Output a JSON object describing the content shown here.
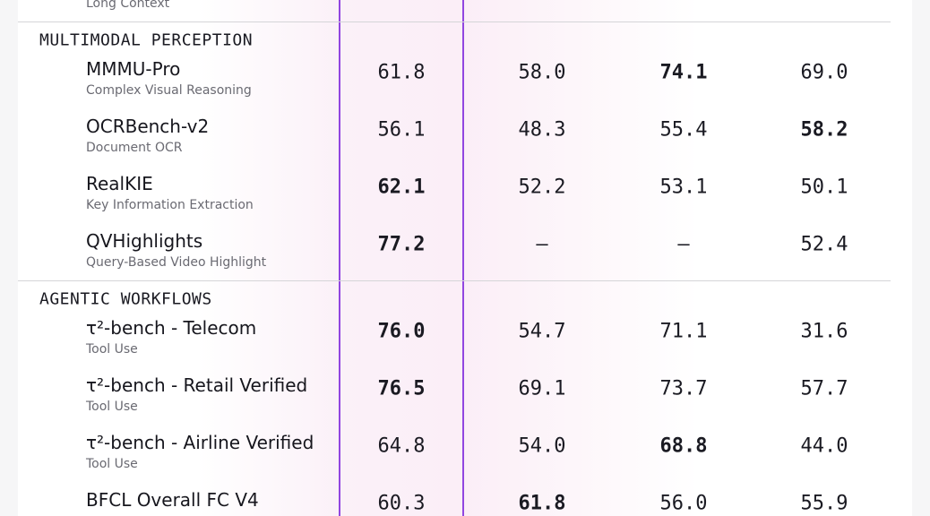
{
  "top_row": {
    "subtitle": "Long Context"
  },
  "sections": [
    {
      "title": "MULTIMODAL PERCEPTION",
      "rows": [
        {
          "name": "MMMU-Pro",
          "subtitle": "Complex Visual Reasoning",
          "values": [
            "61.8",
            "58.0",
            "74.1",
            "69.0"
          ],
          "bold": [
            2
          ]
        },
        {
          "name": "OCRBench-v2",
          "subtitle": "Document OCR",
          "values": [
            "56.1",
            "48.3",
            "55.4",
            "58.2"
          ],
          "bold": [
            3
          ]
        },
        {
          "name": "RealKIE",
          "subtitle": "Key Information Extraction",
          "values": [
            "62.1",
            "52.2",
            "53.1",
            "50.1"
          ],
          "bold": [
            0
          ]
        },
        {
          "name": "QVHighlights",
          "subtitle": "Query-Based Video Highlight",
          "values": [
            "77.2",
            "—",
            "—",
            "52.4"
          ],
          "bold": [
            0
          ]
        }
      ]
    },
    {
      "title": "AGENTIC WORKFLOWS",
      "rows": [
        {
          "name": "τ²-bench - Telecom",
          "subtitle": "Tool Use",
          "values": [
            "76.0",
            "54.7",
            "71.1",
            "31.6"
          ],
          "bold": [
            0
          ]
        },
        {
          "name": "τ²-bench - Retail Verified",
          "subtitle": "Tool Use",
          "values": [
            "76.5",
            "69.1",
            "73.7",
            "57.7"
          ],
          "bold": [
            0
          ]
        },
        {
          "name": "τ²-bench - Airline Verified",
          "subtitle": "Tool Use",
          "values": [
            "64.8",
            "54.0",
            "68.8",
            "44.0"
          ],
          "bold": [
            2
          ]
        },
        {
          "name": "BFCL Overall FC V4",
          "values": [
            "60.3",
            "61.8",
            "56.0",
            "55.9"
          ],
          "bold": [
            1
          ]
        }
      ]
    }
  ]
}
